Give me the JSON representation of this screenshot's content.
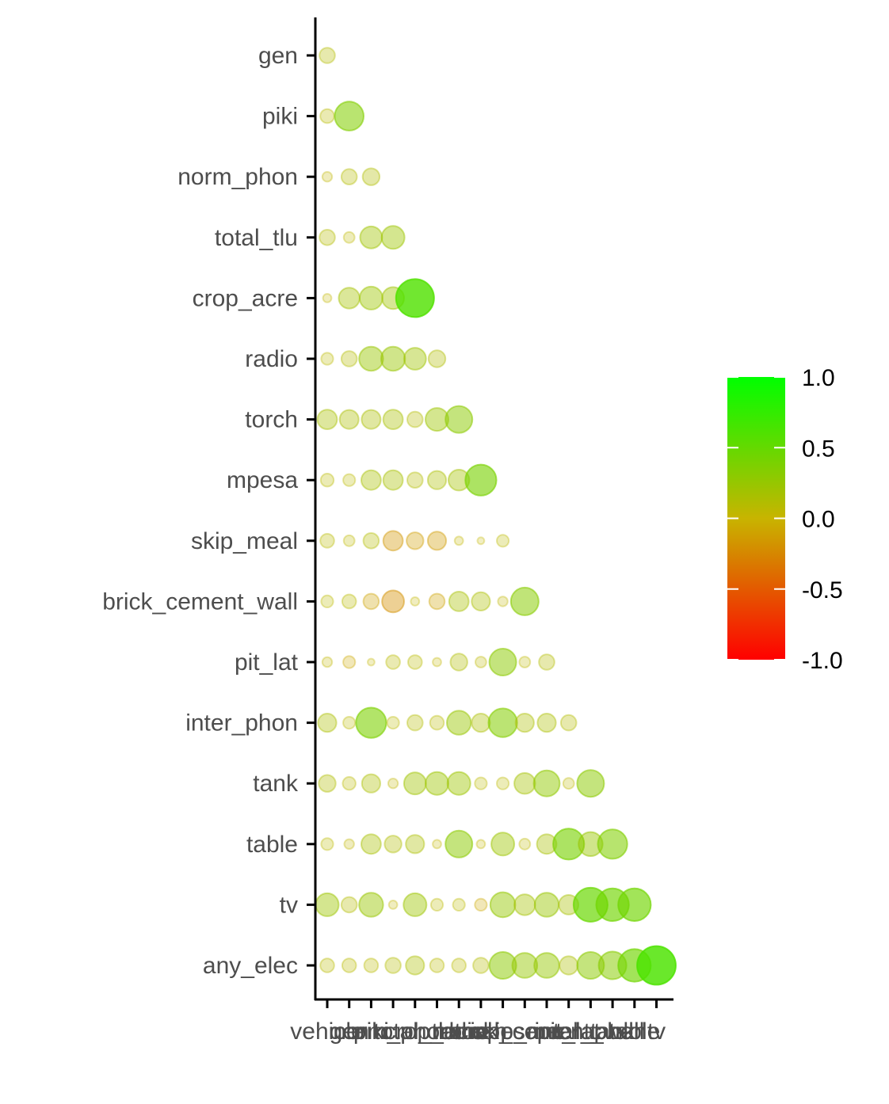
{
  "chart_data": {
    "type": "scatter",
    "subtype": "correlation-bubble-matrix",
    "title": "",
    "xlabel": "",
    "ylabel": "",
    "x_categories": [
      "vehicle",
      "gen",
      "piki",
      "norm_phon",
      "total_tlu",
      "crop_acre",
      "radio",
      "torch",
      "mpesa",
      "skip_meal",
      "brick_cement_wall",
      "pit_lat",
      "inter_phon",
      "tank",
      "table",
      "tv"
    ],
    "y_categories": [
      "gen",
      "piki",
      "norm_phon",
      "total_tlu",
      "crop_acre",
      "radio",
      "torch",
      "mpesa",
      "skip_meal",
      "brick_cement_wall",
      "pit_lat",
      "inter_phon",
      "tank",
      "table",
      "tv",
      "any_elec"
    ],
    "x_tick_labels": [
      "vehicle",
      "gen",
      "piki",
      "norm_phon",
      "total_tlu",
      "crop_acre",
      "radio",
      "torch",
      "mpesa",
      "skip_meal",
      "brick_cement_wall",
      "pit_lat",
      "inter_phon",
      "tank",
      "table",
      "tv"
    ],
    "values": [
      [
        0.1
      ],
      [
        0.08,
        0.35
      ],
      [
        0.04,
        0.1,
        0.12
      ],
      [
        0.1,
        0.05,
        0.2,
        0.22
      ],
      [
        0.03,
        0.18,
        0.22,
        0.2,
        0.6
      ],
      [
        0.06,
        0.1,
        0.24,
        0.24,
        0.2,
        0.12
      ],
      [
        0.16,
        0.15,
        0.15,
        0.16,
        0.1,
        0.22,
        0.3
      ],
      [
        0.07,
        0.06,
        0.16,
        0.16,
        0.1,
        0.14,
        0.18,
        0.4
      ],
      [
        0.08,
        0.05,
        0.1,
        -0.16,
        -0.12,
        -0.14,
        0.03,
        0.02,
        0.06
      ],
      [
        0.06,
        0.08,
        -0.1,
        -0.2,
        0.03,
        -0.1,
        0.16,
        0.14,
        0.04,
        0.32
      ],
      [
        0.04,
        -0.06,
        0.02,
        0.08,
        0.08,
        0.03,
        0.12,
        0.05,
        0.3,
        0.05,
        0.1
      ],
      [
        0.14,
        0.06,
        0.38,
        0.06,
        0.1,
        0.08,
        0.24,
        0.14,
        0.34,
        0.14,
        0.14,
        0.1
      ],
      [
        0.12,
        0.07,
        0.14,
        0.04,
        0.2,
        0.22,
        0.22,
        0.06,
        0.06,
        0.18,
        0.28,
        0.05,
        0.3
      ],
      [
        0.06,
        0.04,
        0.16,
        0.12,
        0.14,
        0.03,
        0.3,
        0.03,
        0.22,
        0.05,
        0.16,
        0.4,
        0.24,
        0.36
      ],
      [
        0.22,
        0.1,
        0.24,
        0.03,
        0.22,
        0.06,
        0.06,
        -0.06,
        0.26,
        0.18,
        0.24,
        0.16,
        0.48,
        0.44,
        0.44
      ],
      [
        0.08,
        0.08,
        0.08,
        0.1,
        0.14,
        0.08,
        0.08,
        0.1,
        0.3,
        0.26,
        0.26,
        0.14,
        0.3,
        0.32,
        0.44,
        0.62
      ]
    ],
    "color_scale": {
      "range": [
        -1.0,
        1.0
      ],
      "low_color": "#ff0000",
      "mid_color": "#c8b400",
      "high_color": "#00ff00",
      "ticks": [
        "1.0",
        "0.5",
        "0.0",
        "-0.5",
        "-1.0"
      ],
      "legend_position": "right"
    },
    "grid": false
  }
}
